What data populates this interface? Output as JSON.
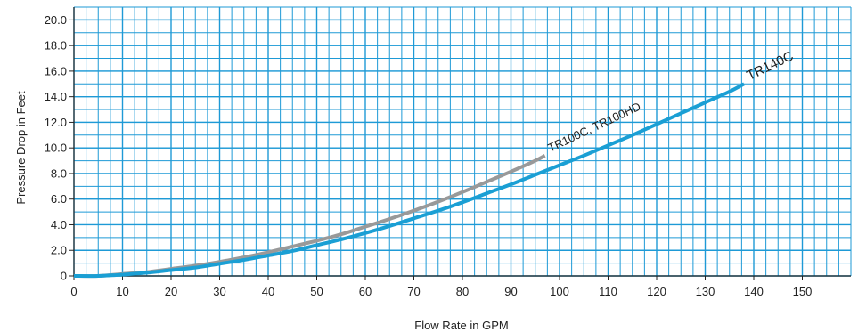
{
  "chart_data": {
    "type": "line",
    "title": "",
    "xlabel": "Flow Rate in GPM",
    "ylabel": "Pressure Drop in Feet",
    "xlim": [
      0,
      160
    ],
    "ylim": [
      0,
      21
    ],
    "x_ticks": [
      0,
      10,
      20,
      30,
      40,
      50,
      60,
      70,
      80,
      90,
      100,
      110,
      120,
      130,
      140,
      150
    ],
    "x_tick_labels": [
      "0",
      "10",
      "20",
      "30",
      "40",
      "50",
      "60",
      "70",
      "80",
      "90",
      "100",
      "110",
      "120",
      "130",
      "140",
      "150"
    ],
    "y_ticks": [
      0,
      2,
      4,
      6,
      8,
      10,
      12,
      14,
      16,
      18,
      20
    ],
    "y_tick_labels": [
      "0",
      "2.0",
      "4.0",
      "6.0",
      "8.0",
      "10.0",
      "12.0",
      "14.0",
      "16.0",
      "18.0",
      "20.0"
    ],
    "minor_x_step": 2.5,
    "minor_y_step": 1,
    "grid": true,
    "grid_color": "#1e9ad6",
    "series": [
      {
        "name": "TR100C, TR100HD",
        "color": "#999999",
        "x": [
          0,
          5,
          10,
          15,
          20,
          25,
          30,
          35,
          40,
          45,
          50,
          55,
          60,
          65,
          70,
          75,
          80,
          85,
          90,
          95,
          97
        ],
        "y": [
          0,
          0,
          0.15,
          0.3,
          0.55,
          0.8,
          1.1,
          1.45,
          1.85,
          2.3,
          2.75,
          3.25,
          3.85,
          4.45,
          5.1,
          5.8,
          6.55,
          7.35,
          8.15,
          9.0,
          9.4
        ]
      },
      {
        "name": "TR140C",
        "color": "#1a9fd4",
        "x": [
          0,
          5,
          10,
          15,
          20,
          25,
          30,
          35,
          40,
          45,
          50,
          55,
          60,
          65,
          70,
          75,
          80,
          85,
          90,
          95,
          100,
          105,
          110,
          115,
          120,
          125,
          130,
          135,
          138
        ],
        "y": [
          0,
          0,
          0.1,
          0.25,
          0.45,
          0.65,
          0.95,
          1.25,
          1.6,
          1.95,
          2.4,
          2.85,
          3.35,
          3.9,
          4.5,
          5.1,
          5.75,
          6.45,
          7.15,
          7.9,
          8.65,
          9.4,
          10.2,
          11.0,
          11.85,
          12.7,
          13.55,
          14.4,
          15.0
        ]
      }
    ]
  }
}
